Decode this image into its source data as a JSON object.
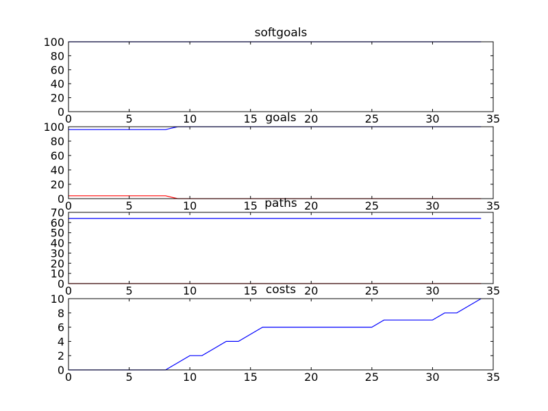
{
  "chart_data": [
    {
      "type": "line",
      "title": "softgoals",
      "xlim": [
        0,
        35
      ],
      "ylim": [
        0,
        100
      ],
      "xticks": [
        "0",
        "5",
        "10",
        "15",
        "20",
        "25",
        "30",
        "35"
      ],
      "yticks": [
        "0",
        "20",
        "40",
        "60",
        "80",
        "100"
      ],
      "grid": false,
      "series": [
        {
          "color": "#0000ff",
          "x": [
            0,
            34
          ],
          "y": [
            100,
            100
          ]
        }
      ]
    },
    {
      "type": "line",
      "title": "goals",
      "xlim": [
        0,
        35
      ],
      "ylim": [
        0,
        100
      ],
      "xticks": [
        "0",
        "5",
        "10",
        "15",
        "20",
        "25",
        "30",
        "35"
      ],
      "yticks": [
        "0",
        "20",
        "40",
        "60",
        "80",
        "100"
      ],
      "grid": false,
      "series": [
        {
          "color": "#0000ff",
          "x": [
            0,
            8,
            9,
            34
          ],
          "y": [
            96,
            96,
            100,
            100
          ]
        },
        {
          "color": "#ff0000",
          "x": [
            0,
            8,
            9,
            34
          ],
          "y": [
            4,
            4,
            0,
            0
          ]
        }
      ]
    },
    {
      "type": "line",
      "title": "paths",
      "xlim": [
        0,
        35
      ],
      "ylim": [
        0,
        70
      ],
      "xticks": [
        "0",
        "5",
        "10",
        "15",
        "20",
        "25",
        "30",
        "35"
      ],
      "yticks": [
        "0",
        "10",
        "20",
        "30",
        "40",
        "50",
        "60",
        "70"
      ],
      "grid": false,
      "series": [
        {
          "color": "#0000ff",
          "x": [
            0,
            34
          ],
          "y": [
            64,
            64
          ]
        },
        {
          "color": "#ff0000",
          "x": [
            0,
            34
          ],
          "y": [
            0,
            0
          ]
        }
      ]
    },
    {
      "type": "line",
      "title": "costs",
      "xlim": [
        0,
        35
      ],
      "ylim": [
        0,
        10
      ],
      "xticks": [
        "0",
        "5",
        "10",
        "15",
        "20",
        "25",
        "30",
        "35"
      ],
      "yticks": [
        "0",
        "2",
        "4",
        "6",
        "8",
        "10"
      ],
      "grid": false,
      "series": [
        {
          "color": "#0000ff",
          "x": [
            0,
            8,
            10,
            11,
            13,
            14,
            16,
            25,
            26,
            30,
            31,
            32,
            34
          ],
          "y": [
            0,
            0,
            2,
            2,
            4,
            4,
            6,
            6,
            7,
            7,
            8,
            8,
            10
          ]
        }
      ]
    }
  ]
}
